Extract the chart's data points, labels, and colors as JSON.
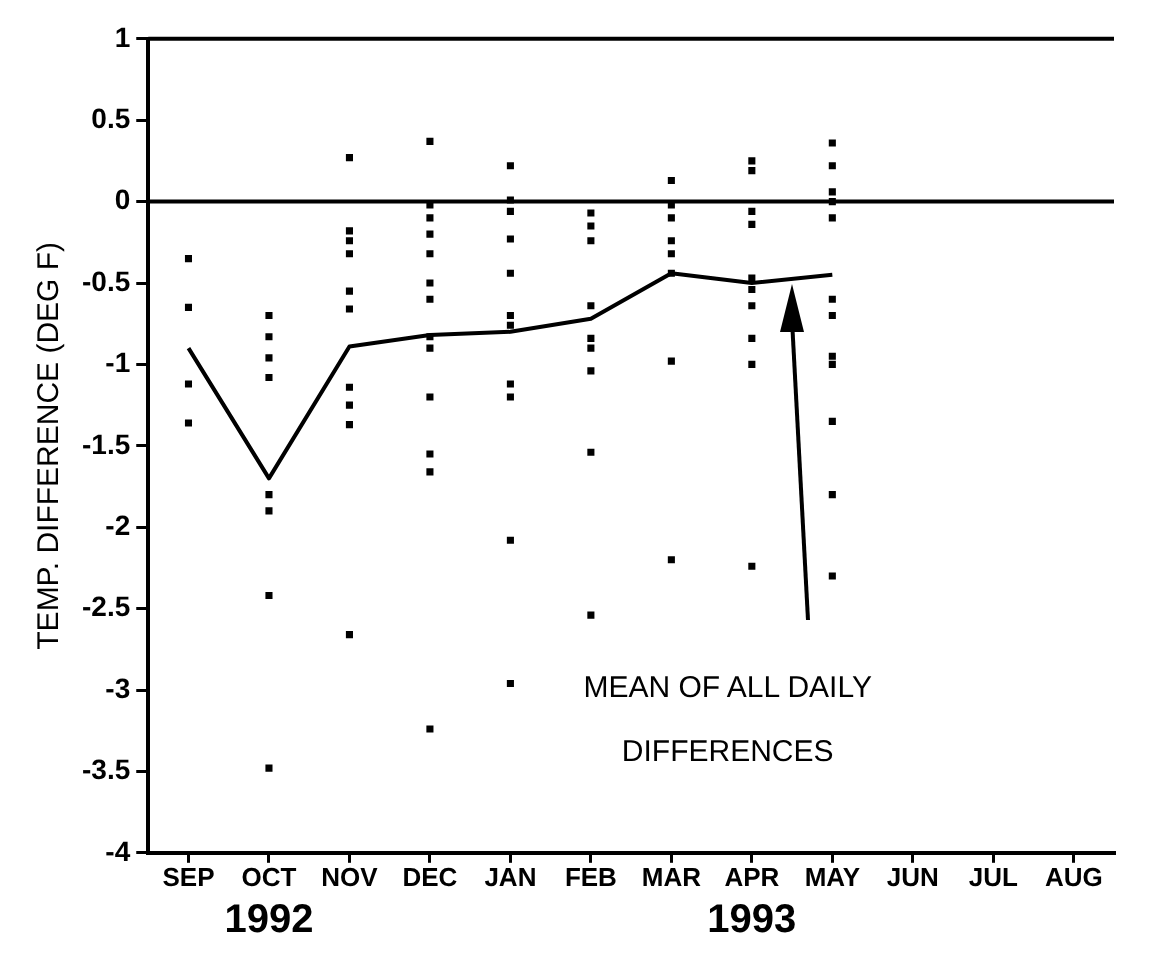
{
  "chart_data": {
    "type": "scatter",
    "ylabel": "TEMP. DIFFERENCE (DEG F)",
    "categories": [
      "SEP",
      "OCT",
      "NOV",
      "DEC",
      "JAN",
      "FEB",
      "MAR",
      "APR",
      "MAY",
      "JUN",
      "JUL",
      "AUG"
    ],
    "series": [
      {
        "type": "scatter",
        "color": "#000000",
        "marker": "square",
        "x": [
          "SEP",
          "SEP",
          "SEP",
          "SEP",
          "OCT",
          "OCT",
          "OCT",
          "OCT",
          "OCT",
          "OCT",
          "OCT",
          "OCT",
          "NOV",
          "NOV",
          "NOV",
          "NOV",
          "NOV",
          "NOV",
          "NOV",
          "NOV",
          "NOV",
          "NOV",
          "DEC",
          "DEC",
          "DEC",
          "DEC",
          "DEC",
          "DEC",
          "DEC",
          "DEC",
          "DEC",
          "DEC",
          "DEC",
          "DEC",
          "DEC",
          "JAN",
          "JAN",
          "JAN",
          "JAN",
          "JAN",
          "JAN",
          "JAN",
          "JAN",
          "JAN",
          "JAN",
          "JAN",
          "FEB",
          "FEB",
          "FEB",
          "FEB",
          "FEB",
          "FEB",
          "FEB",
          "FEB",
          "FEB",
          "MAR",
          "MAR",
          "MAR",
          "MAR",
          "MAR",
          "MAR",
          "MAR",
          "MAR",
          "APR",
          "APR",
          "APR",
          "APR",
          "APR",
          "APR",
          "APR",
          "APR",
          "APR",
          "APR",
          "MAY",
          "MAY",
          "MAY",
          "MAY",
          "MAY",
          "MAY",
          "MAY",
          "MAY",
          "MAY",
          "MAY",
          "MAY",
          "MAY"
        ],
        "values": [
          -0.35,
          -0.65,
          -1.12,
          -1.36,
          -0.7,
          -0.83,
          -0.96,
          -1.08,
          -1.8,
          -1.9,
          -2.42,
          -3.48,
          0.27,
          -0.18,
          -0.24,
          -0.32,
          -0.55,
          -0.66,
          -1.14,
          -1.25,
          -1.37,
          -2.66,
          0.37,
          -0.02,
          -0.1,
          -0.2,
          -0.32,
          -0.5,
          -0.6,
          -0.83,
          -0.9,
          -1.2,
          -1.55,
          -1.66,
          -3.24,
          0.22,
          0.01,
          -0.06,
          -0.23,
          -0.44,
          -0.7,
          -0.76,
          -1.12,
          -1.2,
          -2.08,
          -2.96,
          -0.07,
          -0.15,
          -0.24,
          -0.64,
          -0.84,
          -0.9,
          -1.04,
          -1.54,
          -2.54,
          0.13,
          -0.02,
          -0.1,
          -0.24,
          -0.32,
          -0.44,
          -0.98,
          -2.2,
          0.25,
          0.19,
          -0.06,
          -0.14,
          -0.47,
          -0.54,
          -0.64,
          -0.84,
          -1.0,
          -2.24,
          0.36,
          0.22,
          0.06,
          0.0,
          -0.1,
          -0.6,
          -0.7,
          -0.95,
          -1.0,
          -1.35,
          -1.8,
          -2.3
        ]
      },
      {
        "type": "line",
        "color": "#000000",
        "marker": "none",
        "line_style": "solid",
        "values": [
          -0.9,
          -1.7,
          -0.89,
          -0.82,
          -0.8,
          -0.72,
          -0.44,
          -0.5,
          -0.45,
          null,
          null,
          null
        ]
      }
    ],
    "ylim": [
      -4,
      1
    ],
    "yticks": [
      -4,
      -3.5,
      -3,
      -2.5,
      -2,
      -1.5,
      -1,
      -0.5,
      0,
      0.5,
      1
    ],
    "ref_lines": [
      {
        "axis": "y",
        "value": 0,
        "color": "#000000"
      }
    ],
    "annotations": [
      "1992",
      "1993",
      "MEAN OF ALL DAILY DIFFERENCES"
    ],
    "grid": false,
    "legend": false
  }
}
